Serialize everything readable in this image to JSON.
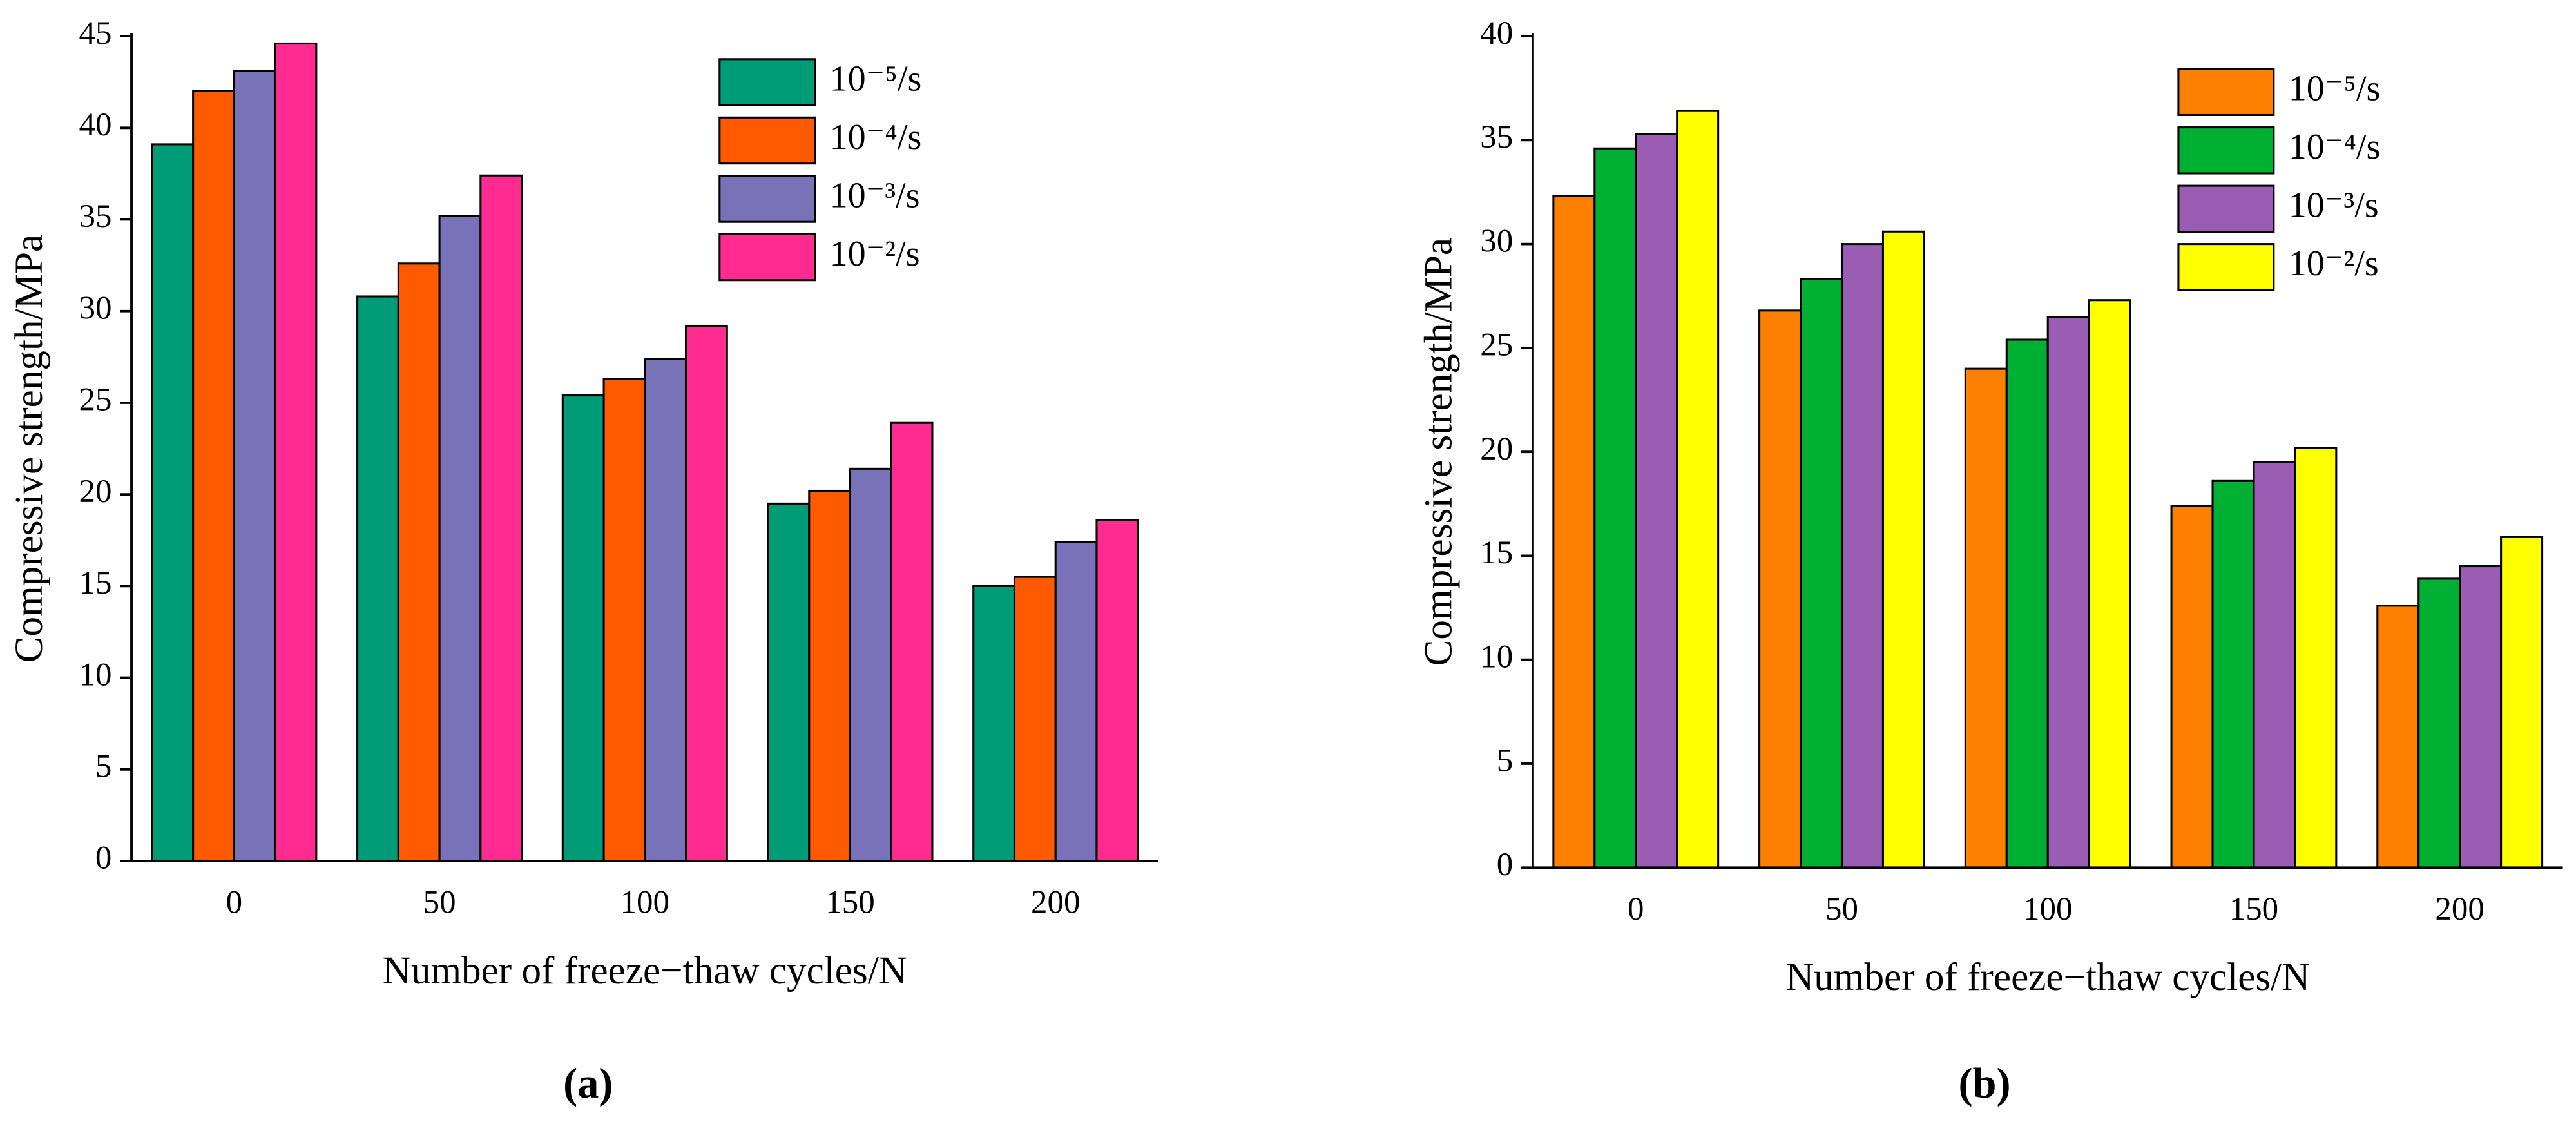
{
  "chart_data": [
    {
      "type": "bar",
      "y_label": "Compressive strength/MPa",
      "x_label": "Number of freeze−thaw cycles/N",
      "caption": "(a)",
      "categories": [
        "0",
        "50",
        "100",
        "150",
        "200"
      ],
      "series": [
        {
          "name": "10⁻⁵/s",
          "color": "#009b77",
          "values": [
            39.1,
            30.8,
            25.4,
            19.5,
            15.0
          ]
        },
        {
          "name": "10⁻⁴/s",
          "color": "#ff5a00",
          "values": [
            42.0,
            32.6,
            26.3,
            20.2,
            15.5
          ]
        },
        {
          "name": "10⁻³/s",
          "color": "#7a72b8",
          "values": [
            43.1,
            35.2,
            27.4,
            21.4,
            17.4
          ]
        },
        {
          "name": "10⁻²/s",
          "color": "#ff2b91",
          "values": [
            44.6,
            37.4,
            29.2,
            23.9,
            18.6
          ]
        }
      ],
      "ylim": [
        0,
        45
      ],
      "yticks": [
        0,
        5,
        10,
        15,
        20,
        25,
        30,
        35,
        40,
        45
      ],
      "legend": "upper right"
    },
    {
      "type": "bar",
      "y_label": "Compressive strength/MPa",
      "x_label": "Number of freeze−thaw cycles/N",
      "caption": "(b)",
      "categories": [
        "0",
        "50",
        "100",
        "150",
        "200"
      ],
      "series": [
        {
          "name": "10⁻⁵/s",
          "color": "#ff8000",
          "values": [
            32.3,
            26.8,
            24.0,
            17.4,
            12.6
          ]
        },
        {
          "name": "10⁻⁴/s",
          "color": "#00b033",
          "values": [
            34.6,
            28.3,
            25.4,
            18.6,
            13.9
          ]
        },
        {
          "name": "10⁻³/s",
          "color": "#9b5cb4",
          "values": [
            35.3,
            30.0,
            26.5,
            19.5,
            14.5
          ]
        },
        {
          "name": "10⁻²/s",
          "color": "#ffff00",
          "values": [
            36.4,
            30.6,
            27.3,
            20.2,
            15.9
          ]
        }
      ],
      "ylim": [
        0,
        40
      ],
      "yticks": [
        0,
        5,
        10,
        15,
        20,
        25,
        30,
        35,
        40
      ],
      "legend": "upper right"
    }
  ]
}
